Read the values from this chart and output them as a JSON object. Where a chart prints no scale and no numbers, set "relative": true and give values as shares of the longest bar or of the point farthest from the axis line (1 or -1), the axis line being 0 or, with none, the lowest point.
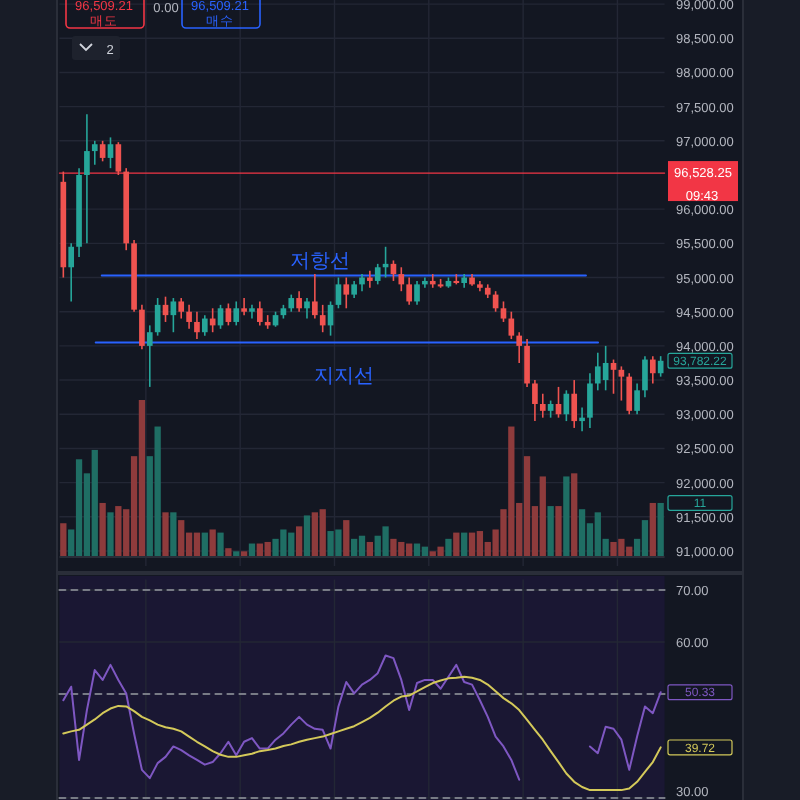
{
  "chart_data": [
    {
      "type": "candlestick",
      "categories": [
        null,
        null,
        null,
        null,
        null,
        null,
        null,
        null,
        null,
        null,
        null,
        null,
        null,
        null,
        null,
        null,
        null,
        null,
        null,
        null,
        null,
        null,
        null,
        null,
        null,
        null,
        null,
        null,
        null,
        null,
        null,
        null,
        null,
        null,
        null,
        null,
        null,
        null,
        null,
        null,
        null,
        null,
        null,
        null,
        null,
        null,
        null,
        null,
        null,
        null,
        null,
        null,
        null,
        null,
        null,
        null,
        null,
        null,
        null,
        null,
        null,
        null,
        null,
        null,
        null,
        null,
        null,
        null,
        null,
        null,
        null,
        null,
        null,
        null,
        null,
        null,
        null
      ],
      "ohlc": [
        [
          96400,
          96550,
          95000,
          95150
        ],
        [
          95150,
          95500,
          94650,
          95450
        ],
        [
          95450,
          96600,
          95300,
          96500
        ],
        [
          96500,
          97390,
          95500,
          96850
        ],
        [
          96850,
          97000,
          96650,
          96950
        ],
        [
          96950,
          97000,
          96700,
          96750
        ],
        [
          96750,
          97050,
          96600,
          96950
        ],
        [
          96950,
          96980,
          96500,
          96550
        ],
        [
          96550,
          96600,
          95400,
          95500
        ],
        [
          95500,
          95550,
          94500,
          94530
        ],
        [
          94530,
          94600,
          93950,
          94000
        ],
        [
          94000,
          94300,
          93400,
          94200
        ],
        [
          94200,
          94700,
          94150,
          94600
        ],
        [
          94600,
          94720,
          94350,
          94450
        ],
        [
          94450,
          94700,
          94200,
          94650
        ],
        [
          94650,
          94700,
          94400,
          94500
        ],
        [
          94500,
          94600,
          94250,
          94350
        ],
        [
          94350,
          94500,
          94100,
          94200
        ],
        [
          94200,
          94450,
          94150,
          94400
        ],
        [
          94400,
          94550,
          94200,
          94300
        ],
        [
          94300,
          94600,
          94250,
          94550
        ],
        [
          94550,
          94620,
          94300,
          94350
        ],
        [
          94350,
          94650,
          94300,
          94550
        ],
        [
          94550,
          94700,
          94450,
          94500
        ],
        [
          94500,
          94600,
          94400,
          94550
        ],
        [
          94550,
          94650,
          94300,
          94350
        ],
        [
          94350,
          94450,
          94250,
          94300
        ],
        [
          94300,
          94500,
          94280,
          94450
        ],
        [
          94450,
          94600,
          94400,
          94550
        ],
        [
          94550,
          94750,
          94500,
          94700
        ],
        [
          94700,
          94800,
          94500,
          94550
        ],
        [
          94550,
          94700,
          94400,
          94650
        ],
        [
          94650,
          95050,
          94400,
          94450
        ],
        [
          94450,
          94600,
          94200,
          94300
        ],
        [
          94300,
          94650,
          94150,
          94600
        ],
        [
          94600,
          95000,
          94550,
          94900
        ],
        [
          94900,
          95000,
          94550,
          94750
        ],
        [
          94750,
          94950,
          94700,
          94900
        ],
        [
          94900,
          95050,
          94800,
          95000
        ],
        [
          95000,
          95100,
          94850,
          94950
        ],
        [
          94950,
          95200,
          94900,
          95150
        ],
        [
          95150,
          95450,
          95000,
          95200
        ],
        [
          95200,
          95250,
          94950,
          95050
        ],
        [
          95050,
          95150,
          94800,
          94900
        ],
        [
          94900,
          95000,
          94600,
          94650
        ],
        [
          94650,
          94950,
          94600,
          94900
        ],
        [
          94900,
          95000,
          94850,
          94950
        ],
        [
          94950,
          95050,
          94850,
          94900
        ],
        [
          94900,
          94980,
          94850,
          94870
        ],
        [
          94870,
          95000,
          94850,
          94950
        ],
        [
          94950,
          95050,
          94900,
          94920
        ],
        [
          94920,
          95050,
          94850,
          95000
        ],
        [
          95000,
          95050,
          94880,
          94900
        ],
        [
          94900,
          94950,
          94800,
          94850
        ],
        [
          94850,
          94900,
          94700,
          94750
        ],
        [
          94750,
          94800,
          94500,
          94550
        ],
        [
          94550,
          94650,
          94350,
          94400
        ],
        [
          94400,
          94500,
          94100,
          94150
        ],
        [
          94150,
          94200,
          93750,
          94000
        ],
        [
          94000,
          94100,
          93400,
          93450
        ],
        [
          93450,
          93500,
          92900,
          93150
        ],
        [
          93150,
          93300,
          92950,
          93050
        ],
        [
          93050,
          93200,
          92950,
          93150
        ],
        [
          93150,
          93400,
          92950,
          93000
        ],
        [
          93000,
          93350,
          92900,
          93300
        ],
        [
          93300,
          93500,
          92800,
          92900
        ],
        [
          92900,
          93100,
          92750,
          92950
        ],
        [
          92950,
          93600,
          92800,
          93450
        ],
        [
          93450,
          93900,
          93350,
          93700
        ],
        [
          93500,
          94000,
          93350,
          93750
        ],
        [
          93750,
          93800,
          93300,
          93650
        ],
        [
          93650,
          93700,
          93200,
          93550
        ],
        [
          93550,
          93600,
          93000,
          93050
        ],
        [
          93050,
          93450,
          93000,
          93350
        ],
        [
          93350,
          93850,
          93250,
          93800
        ],
        [
          93800,
          93850,
          93450,
          93600
        ],
        [
          93600,
          93850,
          93550,
          93782.22
        ]
      ],
      "colors": [
        "#ef5350",
        "#26a69a",
        "#26a69a",
        "#26a69a",
        "#26a69a",
        "#ef5350",
        "#26a69a",
        "#ef5350",
        "#ef5350",
        "#ef5350",
        "#ef5350",
        "#26a69a",
        "#26a69a",
        "#ef5350",
        "#26a69a",
        "#ef5350",
        "#ef5350",
        "#ef5350",
        "#26a69a",
        "#ef5350",
        "#26a69a",
        "#ef5350",
        "#26a69a",
        "#ef5350",
        "#26a69a",
        "#ef5350",
        "#ef5350",
        "#26a69a",
        "#26a69a",
        "#26a69a",
        "#ef5350",
        "#26a69a",
        "#ef5350",
        "#ef5350",
        "#26a69a",
        "#26a69a",
        "#ef5350",
        "#26a69a",
        "#26a69a",
        "#ef5350",
        "#26a69a",
        "#26a69a",
        "#ef5350",
        "#ef5350",
        "#ef5350",
        "#26a69a",
        "#26a69a",
        "#ef5350",
        "#ef5350",
        "#26a69a",
        "#ef5350",
        "#26a69a",
        "#ef5350",
        "#ef5350",
        "#ef5350",
        "#ef5350",
        "#ef5350",
        "#ef5350",
        "#ef5350",
        "#ef5350",
        "#ef5350",
        "#ef5350",
        "#26a69a",
        "#ef5350",
        "#26a69a",
        "#ef5350",
        "#26a69a",
        "#26a69a",
        "#26a69a",
        "#26a69a",
        "#ef5350",
        "#ef5350",
        "#ef5350",
        "#26a69a",
        "#26a69a",
        "#ef5350",
        "#26a69a"
      ],
      "ylim": [
        90780,
        99060
      ],
      "yticks": [
        {
          "value": 91000,
          "label": "91,000.00"
        },
        {
          "value": 91500,
          "label": "91,500.00"
        },
        {
          "value": 92000,
          "label": "92,000.00"
        },
        {
          "value": 92500,
          "label": "92,500.00"
        },
        {
          "value": 93000,
          "label": "93,000.00"
        },
        {
          "value": 93500,
          "label": "93,500.00"
        },
        {
          "value": 94000,
          "label": "94,000.00"
        },
        {
          "value": 94500,
          "label": "94,500.00"
        },
        {
          "value": 95000,
          "label": "95,000.00"
        },
        {
          "value": 95500,
          "label": "95,500.00"
        },
        {
          "value": 96000,
          "label": "96,000.00"
        },
        {
          "value": 97000,
          "label": "97,000.00"
        },
        {
          "value": 97500,
          "label": "97,500.00"
        },
        {
          "value": 98000,
          "label": "98,000.00"
        },
        {
          "value": 98500,
          "label": "98,500.00"
        },
        {
          "value": 99000,
          "label": "99,000.00"
        }
      ],
      "grid": true,
      "ref_lines": [
        {
          "axis": "y",
          "value": 95030,
          "label": "저항선",
          "color": "#2962ff",
          "line_style": "solid"
        },
        {
          "axis": "y",
          "value": 94050,
          "label": "지지선",
          "color": "#2962ff",
          "line_style": "solid"
        },
        {
          "axis": "y",
          "value": 96528.25,
          "label": "96,528.25",
          "color": "#f23645",
          "line_style": "solid"
        }
      ],
      "annotations": [
        "96,509.21",
        "매도",
        "0.00",
        "96,509.21",
        "매수",
        "2",
        "09:43",
        "93,782.22"
      ]
    },
    {
      "type": "bar",
      "relative": true,
      "categories": [
        null,
        null,
        null,
        null,
        null,
        null,
        null,
        null,
        null,
        null,
        null,
        null,
        null,
        null,
        null,
        null,
        null,
        null,
        null,
        null,
        null,
        null,
        null,
        null,
        null,
        null,
        null,
        null,
        null,
        null,
        null,
        null,
        null,
        null,
        null,
        null,
        null,
        null,
        null,
        null,
        null,
        null,
        null,
        null,
        null,
        null,
        null,
        null,
        null,
        null,
        null,
        null,
        null,
        null,
        null,
        null,
        null,
        null,
        null,
        null,
        null,
        null,
        null,
        null,
        null,
        null,
        null,
        null,
        null,
        null,
        null,
        null,
        null,
        null,
        null,
        null,
        null
      ],
      "values": [
        0.21,
        0.17,
        0.62,
        0.53,
        0.68,
        0.34,
        0.28,
        0.32,
        0.3,
        0.64,
        1,
        0.64,
        0.83,
        0.28,
        0.28,
        0.23,
        0.15,
        0.15,
        0.15,
        0.17,
        0.15,
        0.05,
        0.03,
        0.03,
        0.08,
        0.08,
        0.09,
        0.11,
        0.17,
        0.15,
        0.19,
        0.26,
        0.28,
        0.3,
        0.16,
        0.17,
        0.23,
        0.11,
        0.13,
        0.09,
        0.13,
        0.19,
        0.11,
        0.09,
        0.08,
        0.08,
        0.06,
        0.03,
        0.06,
        0.11,
        0.15,
        0.15,
        0.15,
        0.16,
        0.09,
        0.17,
        0.3,
        0.83,
        0.34,
        0.64,
        0.32,
        0.51,
        0.32,
        0.32,
        0.51,
        0.53,
        0.3,
        0.21,
        0.28,
        0.11,
        0.09,
        0.11,
        0.06,
        0.11,
        0.23,
        0.34,
        0.34
      ],
      "colors": [
        "#8e3b3c",
        "#1f6e64",
        "#1f6e64",
        "#1f6e64",
        "#1f6e64",
        "#8e3b3c",
        "#1f6e64",
        "#8e3b3c",
        "#8e3b3c",
        "#8e3b3c",
        "#8e3b3c",
        "#1f6e64",
        "#1f6e64",
        "#8e3b3c",
        "#1f6e64",
        "#8e3b3c",
        "#8e3b3c",
        "#8e3b3c",
        "#1f6e64",
        "#8e3b3c",
        "#1f6e64",
        "#8e3b3c",
        "#1f6e64",
        "#8e3b3c",
        "#1f6e64",
        "#8e3b3c",
        "#8e3b3c",
        "#1f6e64",
        "#1f6e64",
        "#1f6e64",
        "#8e3b3c",
        "#1f6e64",
        "#8e3b3c",
        "#8e3b3c",
        "#1f6e64",
        "#1f6e64",
        "#8e3b3c",
        "#1f6e64",
        "#1f6e64",
        "#8e3b3c",
        "#1f6e64",
        "#1f6e64",
        "#8e3b3c",
        "#8e3b3c",
        "#8e3b3c",
        "#1f6e64",
        "#1f6e64",
        "#8e3b3c",
        "#8e3b3c",
        "#1f6e64",
        "#8e3b3c",
        "#1f6e64",
        "#8e3b3c",
        "#8e3b3c",
        "#8e3b3c",
        "#8e3b3c",
        "#8e3b3c",
        "#8e3b3c",
        "#8e3b3c",
        "#8e3b3c",
        "#8e3b3c",
        "#8e3b3c",
        "#1f6e64",
        "#8e3b3c",
        "#1f6e64",
        "#8e3b3c",
        "#1f6e64",
        "#1f6e64",
        "#1f6e64",
        "#1f6e64",
        "#8e3b3c",
        "#8e3b3c",
        "#8e3b3c",
        "#1f6e64",
        "#1f6e64",
        "#8e3b3c",
        "#1f6e64"
      ],
      "annotations": [
        "11"
      ]
    },
    {
      "type": "line",
      "categories": [
        null,
        null,
        null,
        null,
        null,
        null,
        null,
        null,
        null,
        null,
        null,
        null,
        null,
        null,
        null,
        null,
        null,
        null,
        null,
        null,
        null,
        null,
        null,
        null,
        null,
        null,
        null,
        null,
        null,
        null,
        null,
        null,
        null,
        null,
        null,
        null,
        null,
        null,
        null,
        null,
        null,
        null,
        null,
        null,
        null,
        null,
        null,
        null,
        null,
        null,
        null,
        null,
        null,
        null,
        null,
        null,
        null,
        null,
        null,
        null,
        null,
        null,
        null,
        null,
        null,
        null,
        null,
        null,
        null,
        null,
        null,
        null,
        null,
        null,
        null,
        null,
        null
      ],
      "series": [
        {
          "color": "#7e57c2",
          "values": [
            48.8,
            51.4,
            37.3,
            46.9,
            54.6,
            52.7,
            55.6,
            52.7,
            50.1,
            42.4,
            35.4,
            33.8,
            36.7,
            37.9,
            39.9,
            39.2,
            38.2,
            37.3,
            36.4,
            36.9,
            38.6,
            40.8,
            38.2,
            40.8,
            41.5,
            39.5,
            39.5,
            41.2,
            42.4,
            44.1,
            45.6,
            44.1,
            43.3,
            43.1,
            39.5,
            47.6,
            52.3,
            50.1,
            51.8,
            52.7,
            54.0,
            57.4,
            56.9,
            52.7,
            46.9,
            52.1,
            52.7,
            52.7,
            51.0,
            53.3,
            55.6,
            52.3,
            51.8,
            48.8,
            45.6,
            41.8,
            39.9,
            37.3,
            33.5,
            null,
            null,
            null,
            null,
            null,
            null,
            null,
            null,
            39.9,
            38.6,
            43.7,
            43.3,
            41.2,
            35.4,
            41.8,
            47.6,
            46.3,
            50.33
          ]
        },
        {
          "color": "#d4c95a",
          "values": [
            42.4,
            42.8,
            43.1,
            44.1,
            45.1,
            46.3,
            47.2,
            47.7,
            47.6,
            46.7,
            45.6,
            44.9,
            44.1,
            43.6,
            43.3,
            42.8,
            41.8,
            40.8,
            39.9,
            39.0,
            38.3,
            37.9,
            37.9,
            38.2,
            38.5,
            39.0,
            39.2,
            39.5,
            40.0,
            40.3,
            40.8,
            41.2,
            41.5,
            41.8,
            42.3,
            42.8,
            43.3,
            43.8,
            44.6,
            45.4,
            46.4,
            47.6,
            48.7,
            49.5,
            49.7,
            50.5,
            51.3,
            52.1,
            52.6,
            53.0,
            53.1,
            53.3,
            53.1,
            52.7,
            51.8,
            50.5,
            49.2,
            48.2,
            46.9,
            45.0,
            43.1,
            41.2,
            39.0,
            36.9,
            34.7,
            33.1,
            32.1,
            31.5,
            31.5,
            31.5,
            31.5,
            31.5,
            31.8,
            33.1,
            35.0,
            36.9,
            39.72
          ]
        }
      ],
      "ylim": [
        29.6,
        72
      ],
      "yticks": [
        {
          "value": 30,
          "label": "30.00"
        },
        {
          "value": 60,
          "label": "60.00"
        },
        {
          "value": 70,
          "label": "70.00"
        }
      ],
      "grid": true,
      "ref_lines": [
        {
          "axis": "y",
          "value": 70,
          "color": "#787b86",
          "line_style": "dashed"
        },
        {
          "axis": "y",
          "value": 50,
          "color": "#787b86",
          "line_style": "dashed"
        },
        {
          "axis": "y",
          "value": 30,
          "color": "#787b86",
          "line_style": "dashed"
        }
      ],
      "annotations": [
        "50.33",
        "39.72"
      ]
    }
  ]
}
